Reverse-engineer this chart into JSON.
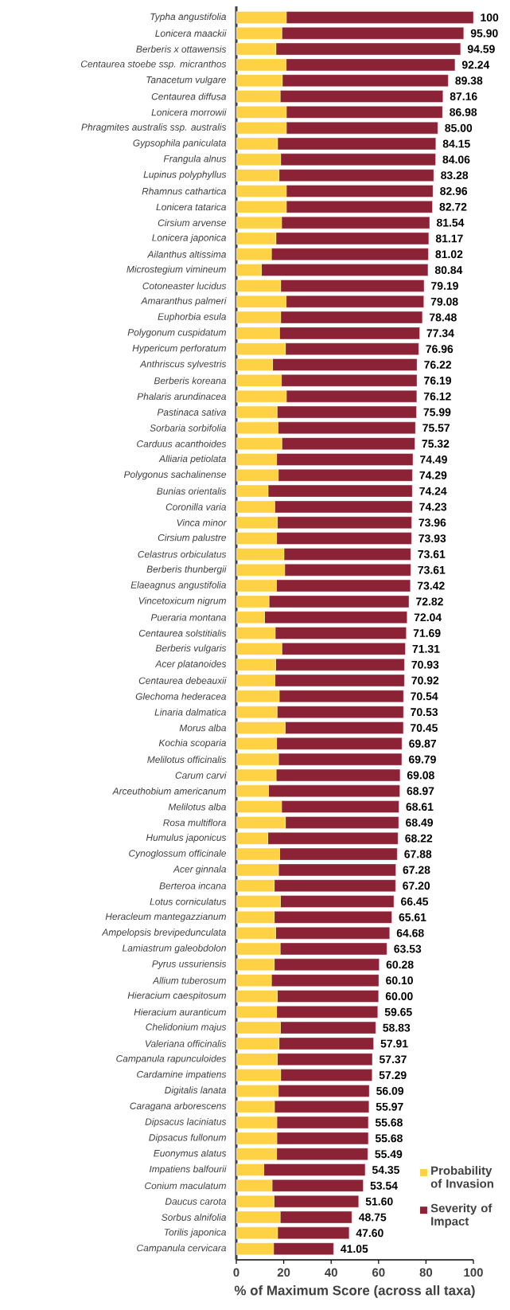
{
  "chart_data": {
    "type": "bar",
    "orientation": "horizontal",
    "stacked": true,
    "xlabel": "% of Maximum Score (across all taxa)",
    "categories": [
      "Typha angustifolia",
      "Lonicera maackii",
      "Berberis x ottawensis",
      "Centaurea stoebe ssp. micranthos",
      "Tanacetum vulgare",
      "Centaurea diffusa",
      "Lonicera morrowii",
      "Phragmites australis ssp. australis",
      "Gypsophila paniculata",
      "Frangula alnus",
      "Lupinus polyphyllus",
      "Rhamnus cathartica",
      "Lonicera tatarica",
      "Cirsium arvense",
      "Lonicera japonica",
      "Ailanthus altissima",
      "Microstegium vimineum",
      "Cotoneaster lucidus",
      "Amaranthus palmeri",
      "Euphorbia esula",
      "Polygonum cuspidatum",
      "Hypericum perforatum",
      "Anthriscus sylvestris",
      "Berberis koreana",
      "Phalaris arundinacea",
      "Pastinaca sativa",
      "Sorbaria sorbifolia",
      "Carduus acanthoides",
      "Alliaria petiolata",
      "Polygonus sachalinense",
      "Bunias orientalis",
      "Coronilla varia",
      "Vinca minor",
      "Cirsium palustre",
      "Celastrus orbiculatus",
      "Berberis thunbergii",
      "Elaeagnus angustifolia",
      "Vincetoxicum nigrum",
      "Pueraria montana",
      "Centaurea solstitialis",
      "Berberis vulgaris",
      "Acer platanoides",
      "Centaurea debeauxii",
      "Glechoma hederacea",
      "Linaria dalmatica",
      "Morus alba",
      "Kochia scoparia",
      "Melilotus officinalis",
      "Carum carvi",
      "Arceuthobium americanum",
      "Melilotus alba",
      "Rosa multiflora",
      "Humulus japonicus",
      "Cynoglossum officinale",
      "Acer ginnala",
      "Berteroa incana",
      "Lotus corniculatus",
      "Heracleum mantegazzianum",
      "Ampelopsis brevipedunculata",
      "Lamiastrum galeobdolon",
      "Pyrus ussuriensis",
      "Allium tuberosum",
      "Hieracium caespitosum",
      "Hieracium auranticum",
      "Chelidonium majus",
      "Valeriana officinalis",
      "Campanula rapunculoides",
      "Cardamine impatiens",
      "Digitalis lanata",
      "Caragana arborescens",
      "Dipsacus laciniatus",
      "Dipsacus fullonum",
      "Euonymus alatus",
      "Impatiens balfourii",
      "Conium maculatum",
      "Daucus carota",
      "Sorbus alnifolia",
      "Torilis japonica",
      "Campanula cervicara"
    ],
    "series": [
      {
        "name": "Probability of Invasion",
        "color": "#ffd145",
        "values": [
          21.1,
          19.2,
          16.7,
          21.0,
          19.4,
          18.5,
          21.1,
          21.1,
          17.4,
          18.7,
          18.0,
          21.1,
          21.1,
          19.1,
          16.7,
          14.8,
          10.6,
          18.7,
          21.0,
          18.7,
          18.2,
          20.7,
          15.3,
          19.0,
          21.1,
          17.2,
          17.6,
          19.2,
          17.0,
          17.7,
          13.4,
          16.2,
          17.3,
          17.0,
          20.1,
          20.4,
          16.9,
          13.8,
          11.9,
          16.4,
          19.2,
          16.6,
          16.3,
          18.1,
          17.2,
          20.6,
          17.0,
          17.8,
          16.8,
          13.6,
          19.1,
          20.7,
          13.3,
          18.3,
          17.8,
          16.0,
          18.6,
          16.0,
          16.6,
          18.5,
          16.0,
          14.8,
          17.3,
          17.0,
          18.6,
          18.0,
          17.3,
          18.7,
          17.7,
          16.1,
          17.1,
          17.1,
          17.0,
          11.6,
          15.1,
          15.9,
          18.5,
          17.4,
          15.7
        ]
      },
      {
        "name": "Severity of Impact",
        "color": "#8b2236",
        "values": [
          78.9,
          76.7,
          77.89,
          71.24,
          69.98,
          68.66,
          65.88,
          63.9,
          66.75,
          65.36,
          65.28,
          61.86,
          61.62,
          62.44,
          64.47,
          66.22,
          70.24,
          60.49,
          58.08,
          59.78,
          59.14,
          56.26,
          60.92,
          57.19,
          55.02,
          58.79,
          57.97,
          56.12,
          57.49,
          56.59,
          60.84,
          58.03,
          56.66,
          56.93,
          53.51,
          53.21,
          56.52,
          59.02,
          60.14,
          55.29,
          52.11,
          54.33,
          54.62,
          52.44,
          53.33,
          49.85,
          52.87,
          51.99,
          52.28,
          55.37,
          49.51,
          47.79,
          54.92,
          49.58,
          49.48,
          51.2,
          47.85,
          49.61,
          48.08,
          45.03,
          44.28,
          45.3,
          42.7,
          42.65,
          40.23,
          39.91,
          40.07,
          38.59,
          38.39,
          39.87,
          38.58,
          38.58,
          38.49,
          42.75,
          38.44,
          35.7,
          30.25,
          30.2,
          25.35
        ]
      }
    ],
    "totals": [
      "100",
      "95.90",
      "94.59",
      "92.24",
      "89.38",
      "87.16",
      "86.98",
      "85.00",
      "84.15",
      "84.06",
      "83.28",
      "82.96",
      "82.72",
      "81.54",
      "81.17",
      "81.02",
      "80.84",
      "79.19",
      "79.08",
      "78.48",
      "77.34",
      "76.96",
      "76.22",
      "76.19",
      "76.12",
      "75.99",
      "75.57",
      "75.32",
      "74.49",
      "74.29",
      "74.24",
      "74.23",
      "73.96",
      "73.93",
      "73.61",
      "73.61",
      "73.42",
      "72.82",
      "72.04",
      "71.69",
      "71.31",
      "70.93",
      "70.92",
      "70.54",
      "70.53",
      "70.45",
      "69.87",
      "69.79",
      "69.08",
      "68.97",
      "68.61",
      "68.49",
      "68.22",
      "67.88",
      "67.28",
      "67.20",
      "66.45",
      "65.61",
      "64.68",
      "63.53",
      "60.28",
      "60.10",
      "60.00",
      "59.65",
      "58.83",
      "57.91",
      "57.37",
      "57.29",
      "56.09",
      "55.97",
      "55.68",
      "55.68",
      "55.49",
      "54.35",
      "53.54",
      "51.60",
      "48.75",
      "47.60",
      "41.05"
    ],
    "xlim": [
      0,
      100
    ],
    "xticks": [
      0,
      20,
      40,
      60,
      80,
      100
    ],
    "legend": "bottom right"
  }
}
